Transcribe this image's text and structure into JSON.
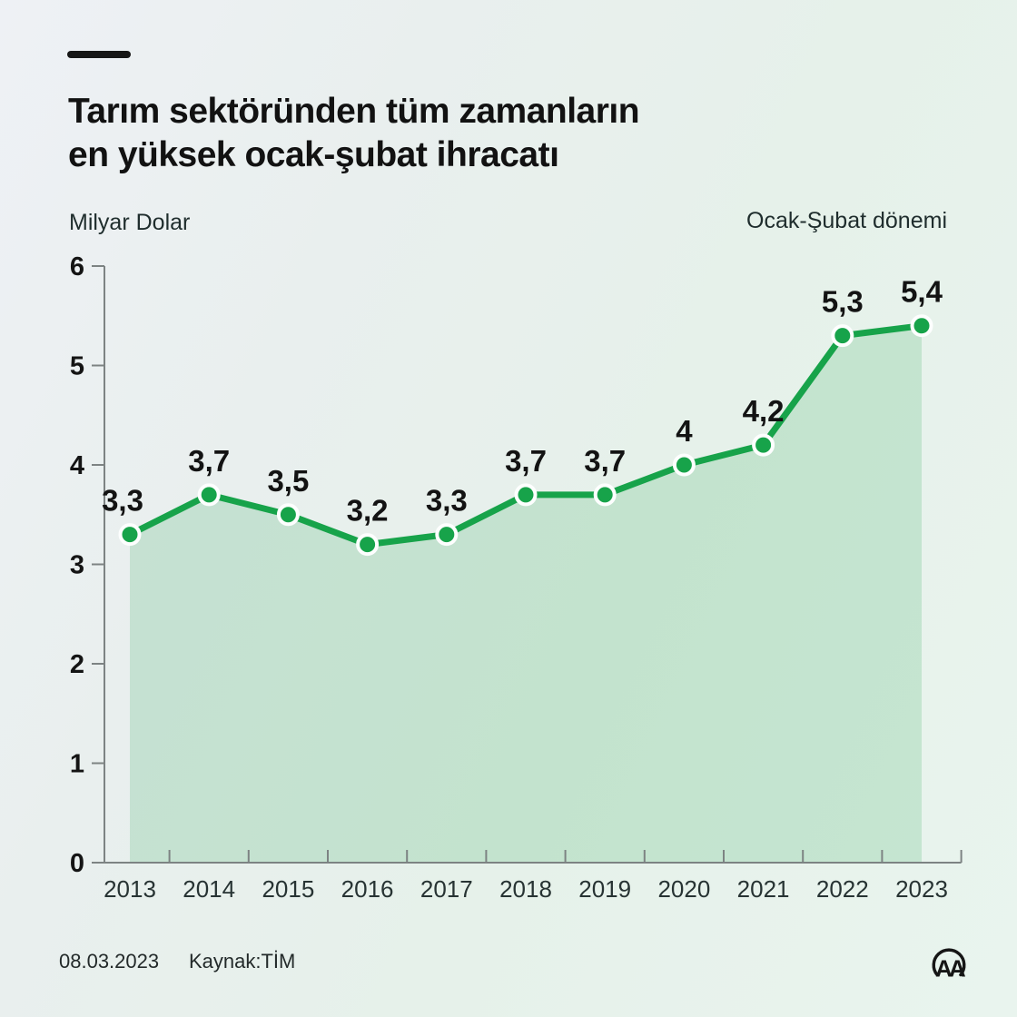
{
  "header": {
    "title": "Tarım sektöründen tüm zamanların\nen yüksek ocak-şubat ihracatı"
  },
  "chart_data": {
    "type": "area",
    "title": "Tarım sektöründen tüm zamanların en yüksek ocak-şubat ihracatı",
    "unit_label": "Milyar Dolar",
    "period_label": "Ocak-Şubat dönemi",
    "xlabel": "",
    "ylabel": "Milyar Dolar",
    "categories": [
      "2013",
      "2014",
      "2015",
      "2016",
      "2017",
      "2018",
      "2019",
      "2020",
      "2021",
      "2022",
      "2023"
    ],
    "values": [
      3.3,
      3.7,
      3.5,
      3.2,
      3.3,
      3.7,
      3.7,
      4,
      4.2,
      5.3,
      5.4
    ],
    "point_labels": [
      "3,3",
      "3,7",
      "3,5",
      "3,2",
      "3,3",
      "3,7",
      "3,7",
      "4",
      "4,2",
      "5,3",
      "5,4"
    ],
    "y_ticks": [
      0,
      1,
      2,
      3,
      4,
      5,
      6
    ],
    "ylim": [
      0,
      6
    ],
    "grid": false,
    "legend_position": "none",
    "line_color": "#17a34a",
    "area_color": "rgba(23,163,74,0.17)",
    "dot_fill": "#17a34a",
    "dot_stroke": "#fdfefe",
    "axis_color": "#7d8383",
    "label_color": "#131313"
  },
  "footer": {
    "date": "08.03.2023",
    "source": "Kaynak:TİM"
  },
  "logo": {
    "text": "AA"
  }
}
